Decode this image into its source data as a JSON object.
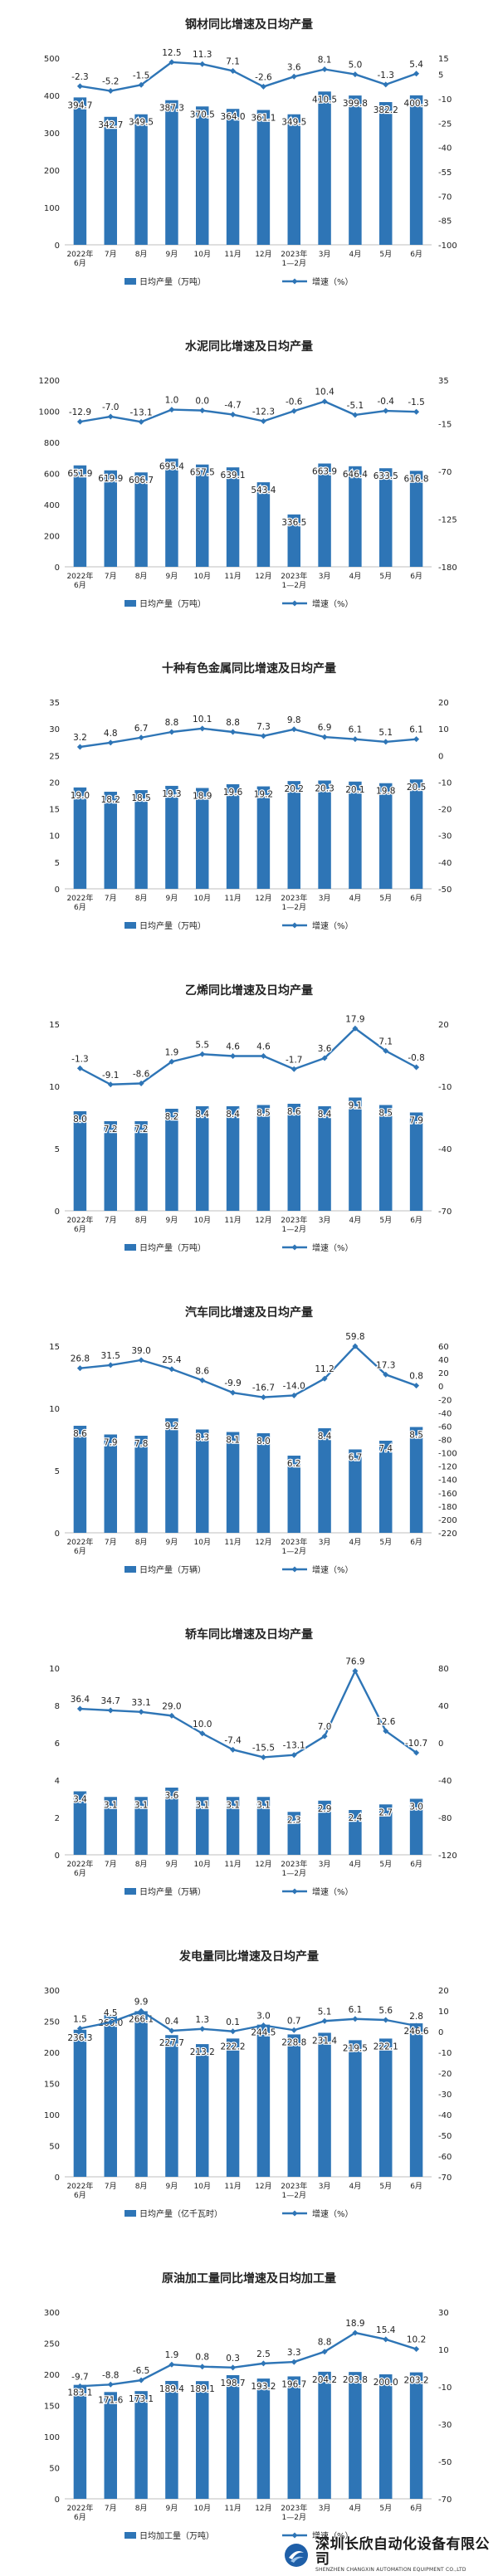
{
  "colors": {
    "bar": "#2e75b6",
    "line": "#2e75b6",
    "text": "#222222",
    "grid": "#d9d9d9"
  },
  "watermark": {
    "cn": "深圳长欣自动化设备有限公司",
    "en": "SHENZHEN CHANGXIN AUTOMATION EQUIPMENT CO.,LTD",
    "icon": "company-logo-icon"
  },
  "chart_data": [
    {
      "type": "bar",
      "title": "钢材同比增速及日均产量",
      "categories": [
        "2022年\n6月",
        "7月",
        "8月",
        "9月",
        "10月",
        "11月",
        "12月",
        "2023年\n1—2月",
        "3月",
        "4月",
        "5月",
        "6月"
      ],
      "series": [
        {
          "name": "日均产量（万吨）",
          "kind": "bar",
          "axis": "left",
          "values": [
            394.7,
            342.7,
            349.5,
            387.3,
            370.5,
            364.0,
            361.1,
            349.5,
            410.5,
            399.8,
            382.2,
            400.3
          ]
        },
        {
          "name": "增速（%）",
          "kind": "line",
          "axis": "right",
          "values": [
            -2.3,
            -5.2,
            -1.5,
            12.5,
            11.3,
            7.1,
            -2.6,
            3.6,
            8.1,
            5.0,
            -1.3,
            5.4
          ]
        }
      ],
      "yleft": {
        "min": 0,
        "max": 500,
        "ticks": [
          0,
          100,
          200,
          300,
          400,
          500
        ]
      },
      "yright": {
        "min": -100,
        "max": 15,
        "ticks": [
          -100,
          -85,
          -70,
          -55,
          -40,
          -25,
          -10,
          5,
          15
        ]
      }
    },
    {
      "type": "bar",
      "title": "水泥同比增速及日均产量",
      "categories": [
        "2022年\n6月",
        "7月",
        "8月",
        "9月",
        "10月",
        "11月",
        "12月",
        "2023年\n1—2月",
        "3月",
        "4月",
        "5月",
        "6月"
      ],
      "series": [
        {
          "name": "日均产量（万吨）",
          "kind": "bar",
          "axis": "left",
          "values": [
            651.9,
            619.9,
            606.7,
            695.4,
            657.5,
            639.1,
            543.4,
            336.5,
            663.9,
            646.4,
            633.5,
            616.8
          ]
        },
        {
          "name": "增速（%）",
          "kind": "line",
          "axis": "right",
          "values": [
            -12.9,
            -7.0,
            -13.1,
            1.0,
            0.0,
            -4.7,
            -12.3,
            -0.6,
            10.4,
            -5.1,
            -0.4,
            -1.5
          ]
        }
      ],
      "yleft": {
        "min": 0,
        "max": 1200,
        "ticks": [
          0,
          200,
          400,
          600,
          800,
          1000,
          1200
        ]
      },
      "yright": {
        "min": -180,
        "max": 35,
        "ticks": [
          -180,
          -125,
          -70,
          -15,
          35
        ]
      }
    },
    {
      "type": "bar",
      "title": "十种有色金属同比增速及日均产量",
      "categories": [
        "2022年\n6月",
        "7月",
        "8月",
        "9月",
        "10月",
        "11月",
        "12月",
        "2023年\n1—2月",
        "3月",
        "4月",
        "5月",
        "6月"
      ],
      "series": [
        {
          "name": "日均产量（万吨）",
          "kind": "bar",
          "axis": "left",
          "values": [
            19.0,
            18.2,
            18.5,
            19.3,
            18.9,
            19.6,
            19.2,
            20.2,
            20.3,
            20.1,
            19.8,
            20.5
          ]
        },
        {
          "name": "增速（%）",
          "kind": "line",
          "axis": "right",
          "values": [
            3.2,
            4.8,
            6.7,
            8.8,
            10.1,
            8.8,
            7.3,
            9.8,
            6.9,
            6.1,
            5.1,
            6.1
          ]
        }
      ],
      "yleft": {
        "min": 0,
        "max": 35,
        "ticks": [
          0,
          5,
          10,
          15,
          20,
          25,
          30,
          35
        ]
      },
      "yright": {
        "min": -50,
        "max": 20,
        "ticks": [
          -50,
          -40,
          -30,
          -20,
          -10,
          0,
          10,
          20
        ]
      }
    },
    {
      "type": "bar",
      "title": "乙烯同比增速及日均产量",
      "categories": [
        "2022年\n6月",
        "7月",
        "8月",
        "9月",
        "10月",
        "11月",
        "12月",
        "2023年\n1—2月",
        "3月",
        "4月",
        "5月",
        "6月"
      ],
      "series": [
        {
          "name": "日均产量（万吨）",
          "kind": "bar",
          "axis": "left",
          "values": [
            8.0,
            7.2,
            7.2,
            8.2,
            8.4,
            8.4,
            8.5,
            8.6,
            8.4,
            9.1,
            8.5,
            7.9
          ]
        },
        {
          "name": "增速（%）",
          "kind": "line",
          "axis": "right",
          "values": [
            -1.3,
            -9.1,
            -8.6,
            1.9,
            5.5,
            4.6,
            4.6,
            -1.7,
            3.6,
            17.9,
            7.1,
            -0.8
          ]
        }
      ],
      "yleft": {
        "min": 0,
        "max": 15,
        "ticks": [
          0,
          5,
          10,
          15
        ]
      },
      "yright": {
        "min": -70,
        "max": 20,
        "ticks": [
          -70,
          -40,
          -10,
          20
        ]
      }
    },
    {
      "type": "bar",
      "title": "汽车同比增速及日均产量",
      "categories": [
        "2022年\n6月",
        "7月",
        "8月",
        "9月",
        "10月",
        "11月",
        "12月",
        "2023年\n1—2月",
        "3月",
        "4月",
        "5月",
        "6月"
      ],
      "series": [
        {
          "name": "日均产量（万辆）",
          "kind": "bar",
          "axis": "left",
          "values": [
            8.6,
            7.9,
            7.8,
            9.2,
            8.3,
            8.1,
            8.0,
            6.2,
            8.4,
            6.7,
            7.4,
            8.5
          ]
        },
        {
          "name": "增速（%）",
          "kind": "line",
          "axis": "right",
          "values": [
            26.8,
            31.5,
            39.0,
            25.4,
            8.6,
            -9.9,
            -16.7,
            -14.0,
            11.2,
            59.8,
            17.3,
            0.8
          ]
        }
      ],
      "yleft": {
        "min": 0,
        "max": 15,
        "ticks": [
          0,
          5,
          10,
          15
        ]
      },
      "yright": {
        "min": -220,
        "max": 60,
        "ticks": [
          -220,
          -200,
          -180,
          -160,
          -140,
          -120,
          -100,
          -80,
          -60,
          -40,
          -20,
          0,
          20,
          40,
          60
        ]
      }
    },
    {
      "type": "bar",
      "title": "轿车同比增速及日均产量",
      "categories": [
        "2022年\n6月",
        "7月",
        "8月",
        "9月",
        "10月",
        "11月",
        "12月",
        "2023年\n1—2月",
        "3月",
        "4月",
        "5月",
        "6月"
      ],
      "series": [
        {
          "name": "日均产量（万辆）",
          "kind": "bar",
          "axis": "left",
          "values": [
            3.4,
            3.1,
            3.1,
            3.6,
            3.1,
            3.1,
            3.1,
            2.3,
            2.9,
            2.4,
            2.7,
            3.0
          ]
        },
        {
          "name": "增速（%）",
          "kind": "line",
          "axis": "right",
          "values": [
            36.4,
            34.7,
            33.1,
            29.0,
            10.0,
            -7.4,
            -15.5,
            -13.1,
            7.0,
            76.9,
            12.6,
            -10.7
          ]
        }
      ],
      "yleft": {
        "min": 0,
        "max": 10,
        "ticks": [
          0,
          2,
          4,
          6,
          8,
          10
        ]
      },
      "yright": {
        "min": -120,
        "max": 80,
        "ticks": [
          -120,
          -80,
          -40,
          0,
          40,
          80
        ]
      }
    },
    {
      "type": "bar",
      "title": "发电量同比增速及日均产量",
      "categories": [
        "2022年\n6月",
        "7月",
        "8月",
        "9月",
        "10月",
        "11月",
        "12月",
        "2023年\n1—2月",
        "3月",
        "4月",
        "5月",
        "6月"
      ],
      "series": [
        {
          "name": "日均产量（亿千瓦时）",
          "kind": "bar",
          "axis": "left",
          "values": [
            236.3,
            260.0,
            266.1,
            227.7,
            213.2,
            222.2,
            244.5,
            228.8,
            231.4,
            219.5,
            222.1,
            246.6
          ]
        },
        {
          "name": "增速（%）",
          "kind": "line",
          "axis": "right",
          "values": [
            1.5,
            4.5,
            9.9,
            0.4,
            1.3,
            0.1,
            3.0,
            0.7,
            5.1,
            6.1,
            5.6,
            2.8
          ]
        }
      ],
      "yleft": {
        "min": 0,
        "max": 300,
        "ticks": [
          0,
          50,
          100,
          150,
          200,
          250,
          300
        ]
      },
      "yright": {
        "min": -70,
        "max": 20,
        "ticks": [
          -70,
          -60,
          -50,
          -40,
          -30,
          -20,
          -10,
          0,
          10,
          20
        ]
      }
    },
    {
      "type": "bar",
      "title": "原油加工量同比增速及日均加工量",
      "categories": [
        "2022年\n6月",
        "7月",
        "8月",
        "9月",
        "10月",
        "11月",
        "12月",
        "2023年\n1—2月",
        "3月",
        "4月",
        "5月",
        "6月"
      ],
      "series": [
        {
          "name": "日均加工量（万吨）",
          "kind": "bar",
          "axis": "left",
          "values": [
            183.1,
            171.6,
            173.1,
            189.4,
            189.1,
            198.7,
            193.2,
            196.7,
            204.2,
            203.8,
            200.0,
            203.2
          ]
        },
        {
          "name": "增速（%）",
          "kind": "line",
          "axis": "right",
          "values": [
            -9.7,
            -8.8,
            -6.5,
            1.9,
            0.8,
            0.3,
            2.5,
            3.3,
            8.8,
            18.9,
            15.4,
            10.2
          ]
        }
      ],
      "yleft": {
        "min": 0,
        "max": 300,
        "ticks": [
          0,
          50,
          100,
          150,
          200,
          250,
          300
        ]
      },
      "yright": {
        "min": -70,
        "max": 30,
        "ticks": [
          -70,
          -50,
          -30,
          -10,
          10,
          30
        ]
      }
    }
  ]
}
